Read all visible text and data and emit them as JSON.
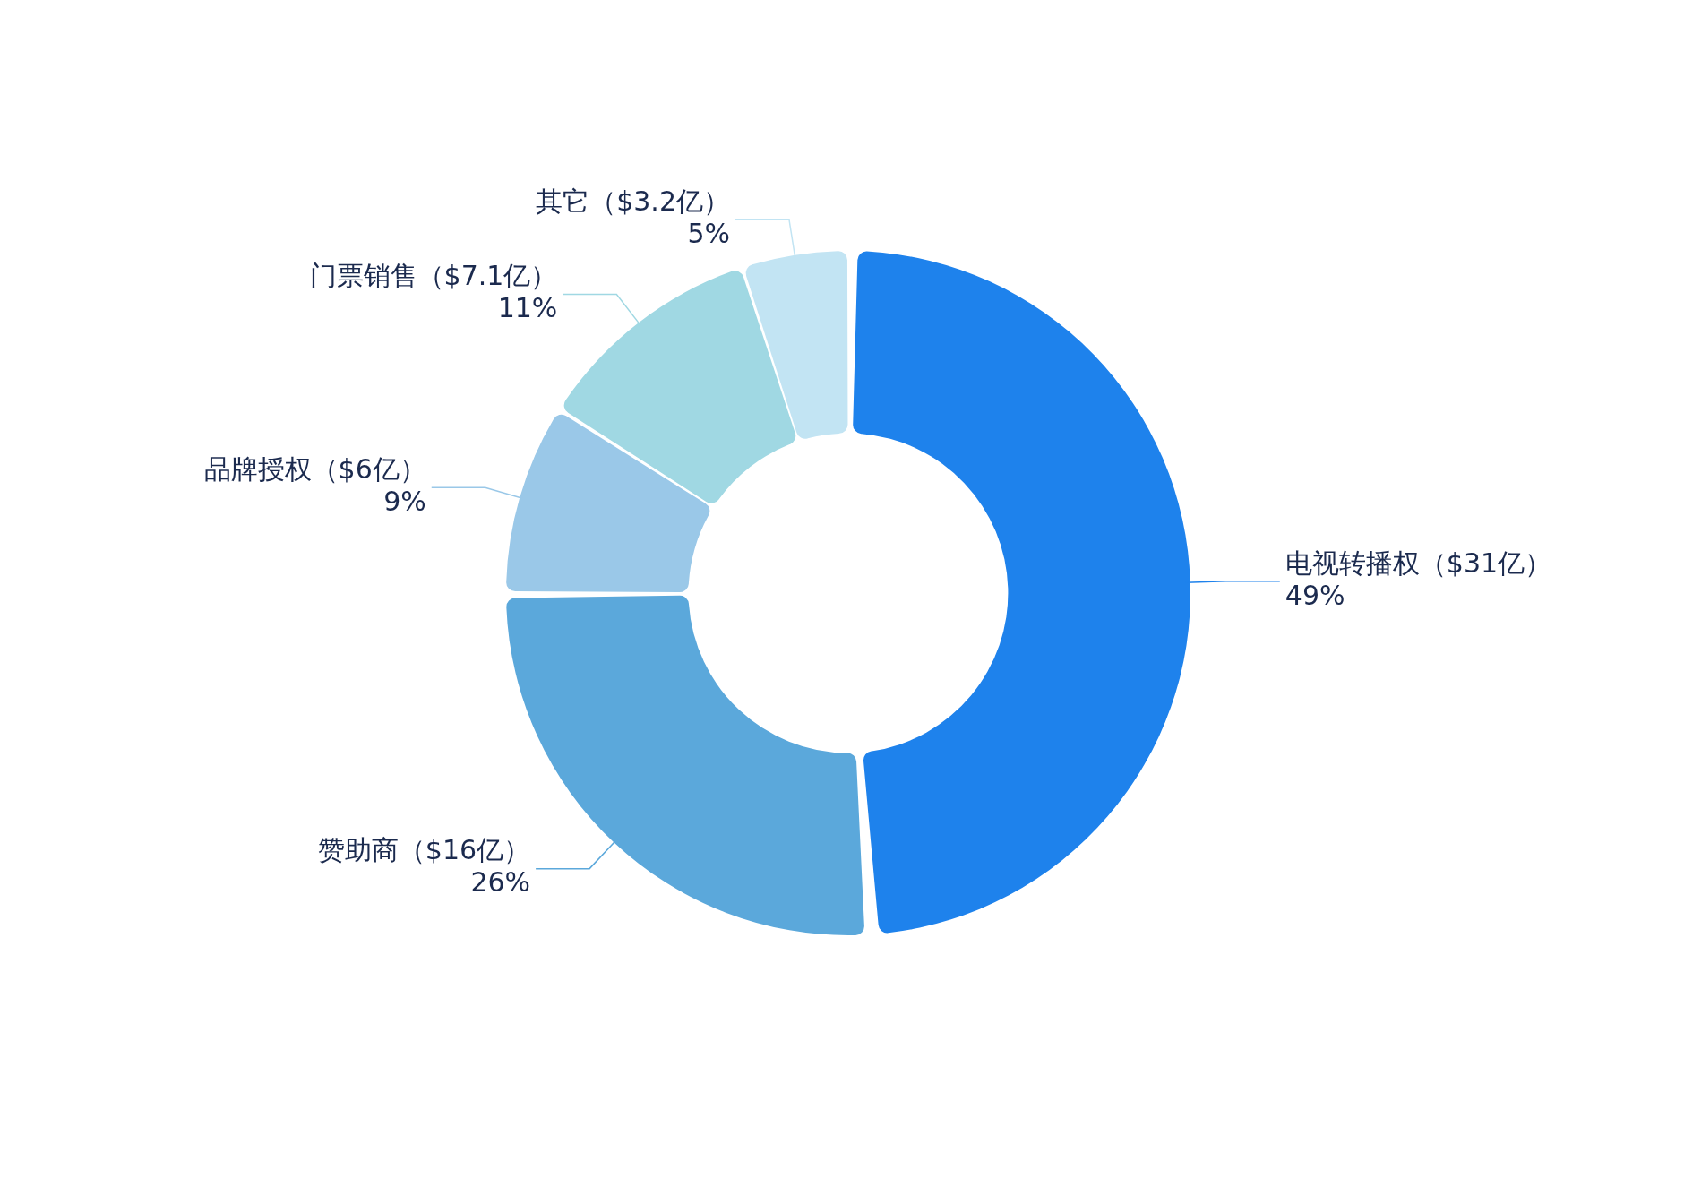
{
  "chart_data": {
    "type": "donut",
    "categories": [
      "电视转播权（$31亿）",
      "赞助商（$16亿）",
      "品牌授权（$6亿）",
      "门票销售（$7.1亿）",
      "其它（$3.2亿）"
    ],
    "values": [
      49,
      26,
      9,
      11,
      5
    ],
    "value_labels": [
      "49%",
      "26%",
      "9%",
      "11%",
      "5%"
    ],
    "colors": [
      "#1e82ec",
      "#5ba8db",
      "#9ac8e8",
      "#a0d8e3",
      "#c2e4f3"
    ],
    "legend": false
  }
}
